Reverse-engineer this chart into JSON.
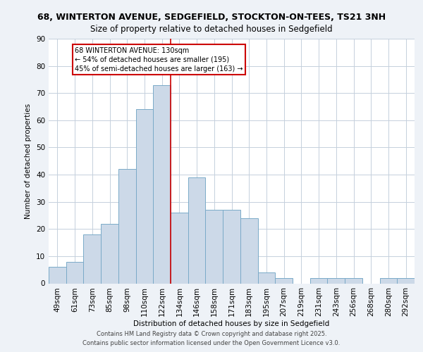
{
  "title_line1": "68, WINTERTON AVENUE, SEDGEFIELD, STOCKTON-ON-TEES, TS21 3NH",
  "title_line2": "Size of property relative to detached houses in Sedgefield",
  "xlabel": "Distribution of detached houses by size in Sedgefield",
  "ylabel": "Number of detached properties",
  "bar_labels": [
    "49sqm",
    "61sqm",
    "73sqm",
    "85sqm",
    "98sqm",
    "110sqm",
    "122sqm",
    "134sqm",
    "146sqm",
    "158sqm",
    "171sqm",
    "183sqm",
    "195sqm",
    "207sqm",
    "219sqm",
    "231sqm",
    "243sqm",
    "256sqm",
    "268sqm",
    "280sqm",
    "292sqm"
  ],
  "bar_values": [
    6,
    8,
    18,
    22,
    42,
    64,
    73,
    26,
    39,
    27,
    27,
    24,
    4,
    2,
    0,
    2,
    2,
    2,
    0,
    2,
    2
  ],
  "bar_color": "#ccd9e8",
  "bar_edge_color": "#7aaac8",
  "red_line_index": 6.5,
  "annotation_text": "68 WINTERTON AVENUE: 130sqm\n← 54% of detached houses are smaller (195)\n45% of semi-detached houses are larger (163) →",
  "annotation_box_color": "#ffffff",
  "annotation_border_color": "#cc0000",
  "footer_line1": "Contains HM Land Registry data © Crown copyright and database right 2025.",
  "footer_line2": "Contains public sector information licensed under the Open Government Licence v3.0.",
  "ylim": [
    0,
    90
  ],
  "background_color": "#eef2f7",
  "plot_background_color": "#ffffff",
  "grid_color": "#c5d0dc",
  "title1_fontsize": 9.0,
  "title2_fontsize": 8.5
}
